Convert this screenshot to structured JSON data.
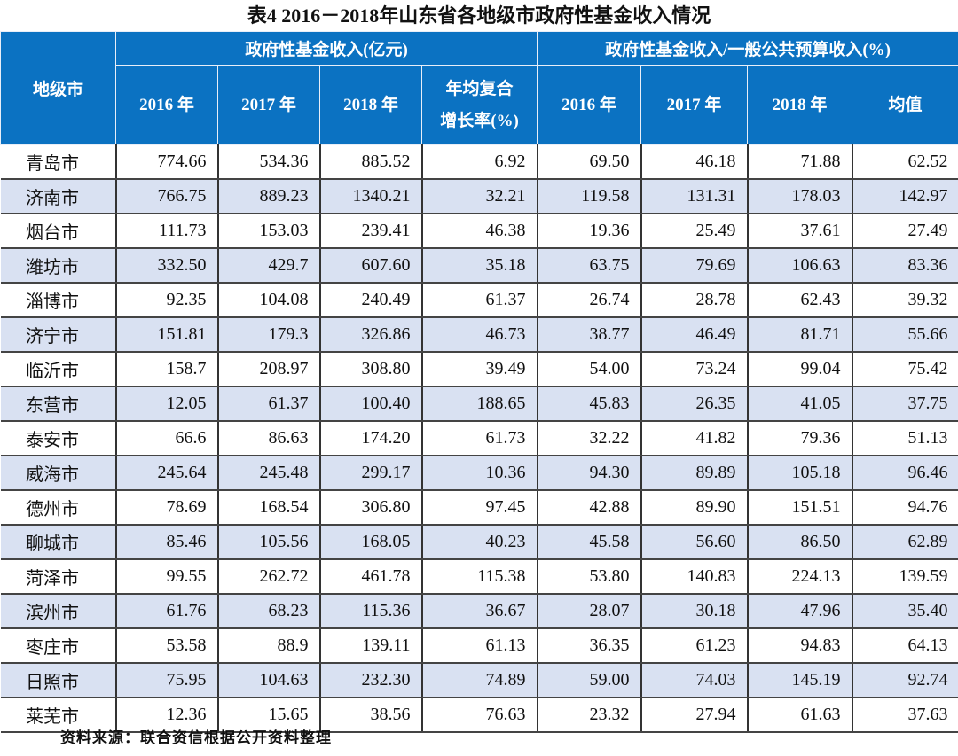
{
  "title": "表4   2016－2018年山东省各地级市政府性基金收入情况",
  "header": {
    "city": "地级市",
    "group1": "政府性基金收入(亿元)",
    "group2": "政府性基金收入/一般公共预算收入(%)",
    "cols": [
      "2016 年",
      "2017 年",
      "2018 年",
      "年均复合增长率(%)",
      "2016 年",
      "2017 年",
      "2018 年",
      "均值"
    ],
    "cagr_line1": "年均复合",
    "cagr_line2": "增长率(%)"
  },
  "header_color": "#0b72c2",
  "stripe_color": "#d9e1f2",
  "rows": [
    {
      "city": "青岛市",
      "v": [
        "774.66",
        "534.36",
        "885.52",
        "6.92",
        "69.50",
        "46.18",
        "71.88",
        "62.52"
      ]
    },
    {
      "city": "济南市",
      "v": [
        "766.75",
        "889.23",
        "1340.21",
        "32.21",
        "119.58",
        "131.31",
        "178.03",
        "142.97"
      ]
    },
    {
      "city": "烟台市",
      "v": [
        "111.73",
        "153.03",
        "239.41",
        "46.38",
        "19.36",
        "25.49",
        "37.61",
        "27.49"
      ]
    },
    {
      "city": "潍坊市",
      "v": [
        "332.50",
        "429.7",
        "607.60",
        "35.18",
        "63.75",
        "79.69",
        "106.63",
        "83.36"
      ]
    },
    {
      "city": "淄博市",
      "v": [
        "92.35",
        "104.08",
        "240.49",
        "61.37",
        "26.74",
        "28.78",
        "62.43",
        "39.32"
      ]
    },
    {
      "city": "济宁市",
      "v": [
        "151.81",
        "179.3",
        "326.86",
        "46.73",
        "38.77",
        "46.49",
        "81.71",
        "55.66"
      ]
    },
    {
      "city": "临沂市",
      "v": [
        "158.7",
        "208.97",
        "308.80",
        "39.49",
        "54.00",
        "73.24",
        "99.04",
        "75.42"
      ]
    },
    {
      "city": "东营市",
      "v": [
        "12.05",
        "61.37",
        "100.40",
        "188.65",
        "45.83",
        "26.35",
        "41.05",
        "37.75"
      ]
    },
    {
      "city": "泰安市",
      "v": [
        "66.6",
        "86.63",
        "174.20",
        "61.73",
        "32.22",
        "41.82",
        "79.36",
        "51.13"
      ]
    },
    {
      "city": "威海市",
      "v": [
        "245.64",
        "245.48",
        "299.17",
        "10.36",
        "94.30",
        "89.89",
        "105.18",
        "96.46"
      ]
    },
    {
      "city": "德州市",
      "v": [
        "78.69",
        "168.54",
        "306.80",
        "97.45",
        "42.88",
        "89.90",
        "151.51",
        "94.76"
      ]
    },
    {
      "city": "聊城市",
      "v": [
        "85.46",
        "105.56",
        "168.05",
        "40.23",
        "45.58",
        "56.60",
        "86.50",
        "62.89"
      ]
    },
    {
      "city": "菏泽市",
      "v": [
        "99.55",
        "262.72",
        "461.78",
        "115.38",
        "53.80",
        "140.83",
        "224.13",
        "139.59"
      ]
    },
    {
      "city": "滨州市",
      "v": [
        "61.76",
        "68.23",
        "115.36",
        "36.67",
        "28.07",
        "30.18",
        "47.96",
        "35.40"
      ]
    },
    {
      "city": "枣庄市",
      "v": [
        "53.58",
        "88.9",
        "139.11",
        "61.13",
        "36.35",
        "61.23",
        "94.83",
        "64.13"
      ]
    },
    {
      "city": "日照市",
      "v": [
        "75.95",
        "104.63",
        "232.30",
        "74.89",
        "59.00",
        "74.03",
        "145.19",
        "92.74"
      ]
    },
    {
      "city": "莱芜市",
      "v": [
        "12.36",
        "15.65",
        "38.56",
        "76.63",
        "23.32",
        "27.94",
        "61.63",
        "37.63"
      ]
    }
  ],
  "footer": "资料来源：联合资信根据公开资料整理"
}
